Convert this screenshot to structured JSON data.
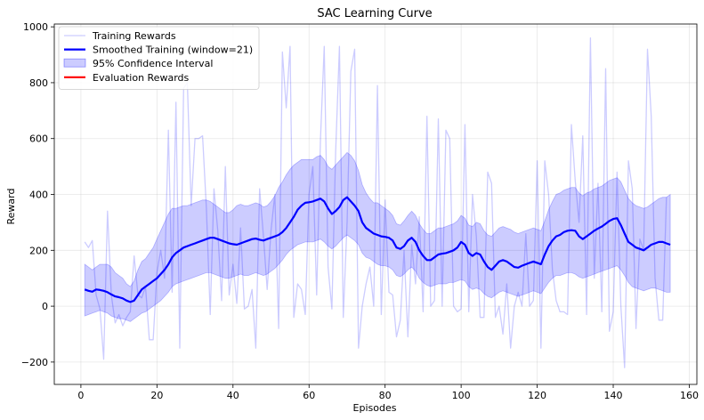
{
  "chart_data": {
    "type": "line",
    "title": "SAC Learning Curve",
    "xlabel": "Episodes",
    "ylabel": "Reward",
    "xlim": [
      -7,
      162
    ],
    "ylim": [
      -280,
      1010
    ],
    "xticks": [
      0,
      20,
      40,
      60,
      80,
      100,
      120,
      140,
      160
    ],
    "yticks": [
      -200,
      0,
      200,
      400,
      600,
      800,
      1000
    ],
    "grid": true,
    "legend_position": "top-left",
    "colors": {
      "training": "#0000ff",
      "smoothed": "#0000ff",
      "ci_fill": "#0000ff",
      "evaluation": "#ff0000"
    },
    "legend": [
      {
        "label": "Training Rewards",
        "kind": "line-faint",
        "color": "#0000ff"
      },
      {
        "label": "Smoothed Training (window=21)",
        "kind": "line-bold",
        "color": "#0000ff"
      },
      {
        "label": "95% Confidence Interval",
        "kind": "patch",
        "color": "#0000ff"
      },
      {
        "label": "Evaluation Rewards",
        "kind": "line-bold",
        "color": "#ff0000"
      }
    ],
    "series": [
      {
        "name": "Training Rewards",
        "x_start": 1,
        "values": [
          230,
          210,
          235,
          40,
          -10,
          -190,
          340,
          40,
          -60,
          -30,
          -70,
          -40,
          -20,
          180,
          40,
          30,
          70,
          -120,
          -120,
          120,
          200,
          100,
          630,
          50,
          730,
          -150,
          780,
          800,
          360,
          600,
          600,
          610,
          350,
          -30,
          420,
          270,
          20,
          500,
          40,
          150,
          10,
          280,
          -10,
          0,
          60,
          -150,
          420,
          250,
          60,
          270,
          400,
          -80,
          910,
          710,
          930,
          -40,
          80,
          60,
          -30,
          400,
          500,
          40,
          600,
          930,
          140,
          -10,
          550,
          930,
          -40,
          300,
          840,
          920,
          -150,
          0,
          80,
          140,
          0,
          790,
          -30,
          380,
          50,
          40,
          -110,
          -50,
          200,
          -110,
          220,
          80,
          320,
          -20,
          680,
          0,
          20,
          670,
          0,
          630,
          600,
          0,
          -20,
          -10,
          650,
          -20,
          400,
          250,
          -40,
          -40,
          480,
          440,
          -40,
          0,
          -100,
          80,
          -150,
          0,
          50,
          0,
          260,
          0,
          20,
          520,
          -150,
          520,
          400,
          130,
          20,
          -20,
          -20,
          -30,
          650,
          450,
          300,
          610,
          -30,
          960,
          100,
          440,
          -20,
          850,
          -90,
          -20,
          480,
          0,
          -220,
          520,
          420,
          -80,
          240,
          200,
          920,
          680,
          100,
          -50,
          -50,
          390
        ]
      },
      {
        "name": "Smoothed Training (window=21)",
        "x_start": 1,
        "values": [
          60,
          55,
          52,
          60,
          58,
          55,
          50,
          42,
          35,
          32,
          28,
          20,
          15,
          20,
          40,
          60,
          70,
          80,
          90,
          100,
          115,
          130,
          150,
          175,
          190,
          200,
          210,
          215,
          220,
          225,
          230,
          235,
          240,
          245,
          245,
          240,
          235,
          230,
          225,
          222,
          220,
          225,
          230,
          235,
          240,
          242,
          238,
          235,
          240,
          245,
          250,
          255,
          265,
          280,
          300,
          320,
          345,
          360,
          370,
          372,
          375,
          380,
          385,
          375,
          350,
          330,
          340,
          355,
          380,
          390,
          375,
          360,
          340,
          300,
          280,
          270,
          260,
          255,
          250,
          248,
          245,
          235,
          210,
          205,
          215,
          235,
          245,
          230,
          200,
          180,
          165,
          165,
          175,
          185,
          188,
          190,
          195,
          200,
          210,
          230,
          220,
          190,
          180,
          190,
          185,
          160,
          140,
          130,
          145,
          160,
          165,
          160,
          150,
          140,
          138,
          145,
          150,
          155,
          160,
          155,
          150,
          185,
          215,
          235,
          250,
          255,
          265,
          270,
          272,
          270,
          250,
          240,
          250,
          260,
          270,
          278,
          285,
          295,
          305,
          312,
          315,
          290,
          260,
          230,
          220,
          210,
          205,
          200,
          210,
          220,
          225,
          230,
          230,
          225,
          220
        ]
      },
      {
        "name": "95% Confidence Interval",
        "x_start": 1,
        "upper": [
          150,
          140,
          130,
          140,
          150,
          150,
          150,
          140,
          120,
          110,
          100,
          80,
          70,
          90,
          130,
          160,
          170,
          190,
          210,
          240,
          270,
          300,
          330,
          350,
          350,
          355,
          360,
          360,
          365,
          370,
          375,
          380,
          380,
          375,
          365,
          355,
          345,
          335,
          335,
          345,
          360,
          365,
          360,
          360,
          365,
          370,
          365,
          355,
          360,
          375,
          395,
          425,
          445,
          470,
          490,
          505,
          515,
          525,
          525,
          525,
          525,
          535,
          540,
          525,
          500,
          490,
          505,
          520,
          535,
          550,
          540,
          520,
          485,
          435,
          405,
          385,
          370,
          370,
          360,
          350,
          340,
          325,
          295,
          290,
          305,
          325,
          340,
          325,
          295,
          275,
          260,
          260,
          270,
          280,
          280,
          285,
          290,
          295,
          305,
          325,
          315,
          290,
          285,
          300,
          295,
          270,
          255,
          250,
          265,
          280,
          285,
          280,
          275,
          265,
          260,
          265,
          270,
          275,
          280,
          275,
          270,
          305,
          345,
          375,
          400,
          405,
          415,
          420,
          425,
          425,
          405,
          395,
          405,
          410,
          420,
          425,
          430,
          440,
          450,
          455,
          460,
          445,
          415,
          385,
          370,
          360,
          355,
          350,
          355,
          365,
          375,
          385,
          390,
          390,
          400
        ],
        "lower": [
          -35,
          -30,
          -25,
          -20,
          -15,
          -20,
          -25,
          -35,
          -40,
          -45,
          -45,
          -50,
          -55,
          -45,
          -35,
          -25,
          -20,
          -10,
          0,
          10,
          20,
          35,
          50,
          70,
          80,
          85,
          90,
          95,
          100,
          105,
          110,
          115,
          120,
          120,
          115,
          110,
          105,
          100,
          100,
          105,
          110,
          115,
          110,
          110,
          115,
          120,
          115,
          110,
          115,
          125,
          135,
          150,
          165,
          185,
          200,
          210,
          220,
          225,
          230,
          230,
          230,
          235,
          240,
          230,
          215,
          205,
          215,
          230,
          245,
          255,
          245,
          235,
          220,
          190,
          175,
          170,
          160,
          150,
          145,
          145,
          140,
          130,
          110,
          105,
          115,
          130,
          140,
          125,
          100,
          85,
          75,
          70,
          75,
          80,
          80,
          80,
          85,
          85,
          90,
          95,
          90,
          70,
          60,
          65,
          60,
          45,
          35,
          30,
          40,
          50,
          55,
          50,
          45,
          40,
          35,
          40,
          45,
          50,
          55,
          50,
          45,
          65,
          85,
          100,
          110,
          110,
          115,
          120,
          120,
          115,
          105,
          100,
          105,
          110,
          115,
          120,
          125,
          130,
          135,
          140,
          145,
          130,
          110,
          85,
          70,
          65,
          60,
          55,
          60,
          65,
          65,
          60,
          55,
          50,
          50
        ]
      },
      {
        "name": "Evaluation Rewards",
        "values": []
      }
    ]
  }
}
